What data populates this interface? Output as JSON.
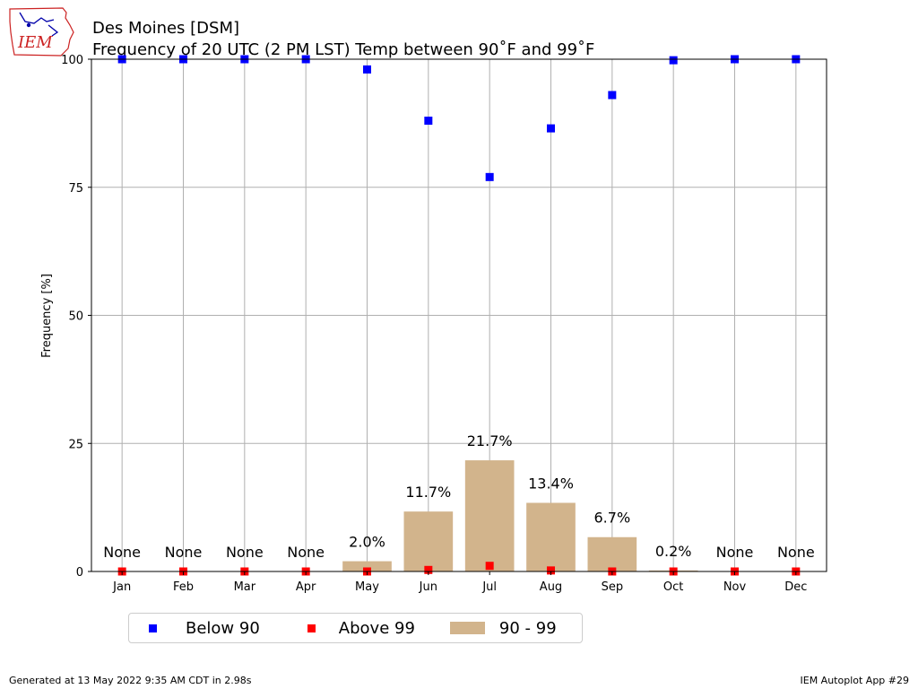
{
  "logo": {
    "text": "IEM",
    "color": "#cc2222"
  },
  "header": {
    "title": "Des Moines [DSM]",
    "subtitle": "Frequency of 20 UTC (2 PM LST) Temp between 90˚F and 99˚F"
  },
  "footer": {
    "generated": "Generated at 13 May 2022 9:35 AM CDT in 2.98s",
    "app": "IEM Autoplot App #29"
  },
  "chart_data": {
    "type": "bar",
    "title": "Frequency of 20 UTC (2 PM LST) Temp between 90˚F and 99˚F",
    "ylabel": "Frequency [%]",
    "xlabel": "",
    "ylim": [
      0,
      100
    ],
    "yticks": [
      0,
      25,
      50,
      75,
      100
    ],
    "grid": true,
    "legend_position": "bottom",
    "categories": [
      "Jan",
      "Feb",
      "Mar",
      "Apr",
      "May",
      "Jun",
      "Jul",
      "Aug",
      "Sep",
      "Oct",
      "Nov",
      "Dec"
    ],
    "series": [
      {
        "name": "90 - 99",
        "kind": "bar",
        "color": "#d2b48c",
        "values": [
          0,
          0,
          0,
          0,
          2.0,
          11.7,
          21.7,
          13.4,
          6.7,
          0.2,
          0,
          0
        ]
      },
      {
        "name": "Below 90",
        "kind": "marker",
        "color": "#0000ff",
        "values": [
          100,
          100,
          100,
          100,
          98,
          88,
          77,
          86.5,
          93,
          99.8,
          100,
          100
        ]
      },
      {
        "name": "Above 99",
        "kind": "marker",
        "color": "#ff0000",
        "values": [
          0,
          0,
          0,
          0,
          0,
          0.3,
          1.1,
          0.2,
          0,
          0,
          0,
          0
        ]
      }
    ],
    "bar_labels": [
      "None",
      "None",
      "None",
      "None",
      "2.0%",
      "11.7%",
      "21.7%",
      "13.4%",
      "6.7%",
      "0.2%",
      "None",
      "None"
    ]
  }
}
